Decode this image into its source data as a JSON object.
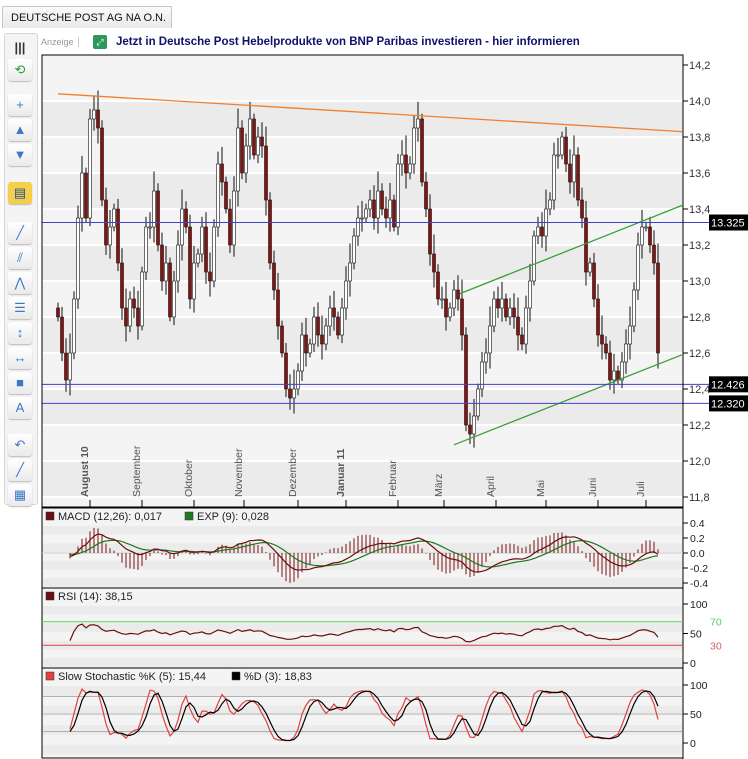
{
  "tab": {
    "title": "DEUTSCHE POST AG NA O.N."
  },
  "banner": {
    "ad_label": "Anzeige",
    "text": "Jetzt in Deutsche Post Hebelprodukte von BNP Paribas investieren - hier informieren"
  },
  "toolbar": {
    "items": [
      {
        "name": "collapse-toolbar",
        "glyph": "|||"
      },
      {
        "name": "refresh",
        "glyph": "⟲"
      },
      {
        "name": "crosshair",
        "glyph": "+"
      },
      {
        "name": "zoom-in",
        "glyph": "▲"
      },
      {
        "name": "zoom-out",
        "glyph": "▼"
      },
      {
        "name": "indicators",
        "glyph": "▤"
      },
      {
        "name": "trendline",
        "glyph": "╱"
      },
      {
        "name": "channel",
        "glyph": "⫽"
      },
      {
        "name": "fibonacci",
        "glyph": "⋀"
      },
      {
        "name": "fib-levels",
        "glyph": "☰"
      },
      {
        "name": "vertical-line",
        "glyph": "↕"
      },
      {
        "name": "horizontal-line",
        "glyph": "↔"
      },
      {
        "name": "rectangle",
        "glyph": "■"
      },
      {
        "name": "text",
        "glyph": "A"
      },
      {
        "name": "arc",
        "glyph": "↶"
      },
      {
        "name": "ray",
        "glyph": "╱"
      },
      {
        "name": "colors",
        "glyph": "▦"
      }
    ]
  },
  "chart_data": {
    "type": "candlestick",
    "title": "DEUTSCHE POST AG NA O.N.",
    "ylim": [
      11.8,
      14.2
    ],
    "y_ticks": [
      "14,2",
      "14,0",
      "13,8",
      "13,6",
      "13,4",
      "13,2",
      "13,0",
      "12,8",
      "12,6",
      "12,4",
      "12,2",
      "12,0",
      "11,8"
    ],
    "months": [
      {
        "label": "August 10",
        "index": 8,
        "bold": true
      },
      {
        "label": "September",
        "index": 21,
        "bold": false
      },
      {
        "label": "Oktober",
        "index": 34,
        "bold": false
      },
      {
        "label": "November",
        "index": 46.5,
        "bold": false
      },
      {
        "label": "Dezember",
        "index": 60,
        "bold": false
      },
      {
        "label": "Januar 11",
        "index": 72,
        "bold": true
      },
      {
        "label": "Februar",
        "index": 85,
        "bold": false
      },
      {
        "label": "März",
        "index": 96.5,
        "bold": false
      },
      {
        "label": "April",
        "index": 109.5,
        "bold": false
      },
      {
        "label": "Mai",
        "index": 122,
        "bold": false
      },
      {
        "label": "Juni",
        "index": 135,
        "bold": false
      },
      {
        "label": "Juli",
        "index": 147,
        "bold": false
      }
    ],
    "close": [
      12.8,
      12.6,
      12.45,
      12.6,
      12.9,
      13.35,
      13.6,
      13.35,
      13.9,
      13.95,
      13.85,
      13.45,
      13.2,
      13.3,
      13.4,
      13.1,
      12.85,
      12.75,
      12.9,
      12.85,
      12.75,
      13.05,
      13.3,
      13.3,
      13.5,
      13.2,
      13.0,
      13.1,
      12.8,
      13.0,
      13.2,
      13.4,
      13.3,
      12.9,
      13.1,
      13.15,
      13.3,
      13.05,
      13.0,
      13.3,
      13.65,
      13.55,
      13.4,
      13.2,
      13.5,
      13.85,
      13.6,
      13.75,
      13.9,
      13.7,
      13.8,
      13.75,
      13.45,
      13.1,
      12.95,
      12.75,
      12.6,
      12.4,
      12.35,
      12.4,
      12.5,
      12.7,
      12.6,
      12.65,
      12.8,
      12.7,
      12.65,
      12.75,
      12.85,
      12.8,
      12.7,
      12.85,
      13.0,
      13.1,
      13.25,
      13.35,
      13.35,
      13.4,
      13.45,
      13.35,
      13.5,
      13.4,
      13.35,
      13.45,
      13.3,
      13.65,
      13.7,
      13.6,
      13.65,
      13.85,
      13.9,
      13.55,
      13.4,
      13.15,
      13.05,
      12.9,
      12.9,
      12.8,
      12.85,
      12.95,
      12.9,
      12.7,
      12.2,
      12.15,
      12.25,
      12.4,
      12.55,
      12.6,
      12.75,
      12.9,
      12.85,
      12.9,
      12.8,
      12.85,
      12.8,
      12.7,
      12.65,
      12.85,
      13.0,
      13.25,
      13.3,
      13.25,
      13.4,
      13.45,
      13.7,
      13.7,
      13.8,
      13.65,
      13.55,
      13.7,
      13.45,
      13.35,
      13.05,
      13.1,
      12.9,
      12.7,
      12.65,
      12.6,
      12.45,
      12.5,
      12.45,
      12.55,
      12.65,
      12.75,
      12.95,
      13.2,
      13.3,
      13.3,
      13.2,
      13.1,
      12.6
    ],
    "horizontal_lines": [
      {
        "price": 13.325,
        "label": "13.325",
        "color": "#4040d0"
      },
      {
        "price": 12.426,
        "label": "12.426",
        "color": "#4040d0"
      },
      {
        "price": 12.32,
        "label": "12.320",
        "color": "#4040d0"
      }
    ],
    "trendlines": [
      {
        "name": "resistance-trendline",
        "from": [
          0,
          14.04
        ],
        "to": [
          156,
          13.83
        ],
        "color": "#f08030"
      },
      {
        "name": "channel-upper",
        "from": [
          100.5,
          12.93
        ],
        "to": [
          156,
          13.42
        ],
        "color": "#3aa03a"
      },
      {
        "name": "channel-lower",
        "from": [
          99,
          12.09
        ],
        "to": [
          156,
          12.59
        ],
        "color": "#3aa03a"
      }
    ],
    "indicators": {
      "macd": {
        "label": "MACD (12,26): 0,017",
        "signal_label": "EXP (9): 0,028",
        "macd_color": "#6a0f0f",
        "signal_color": "#1e7a1e",
        "ylim": [
          -0.45,
          0.45
        ],
        "ticks": [
          "0.4",
          "0.2",
          "0.0",
          "-0.2",
          "-0.4"
        ]
      },
      "rsi": {
        "label": "RSI (14): 38,15",
        "color": "#6a0f0f",
        "ylim": [
          0,
          100
        ],
        "ticks": [
          "100",
          "50",
          "0"
        ],
        "upper": 70,
        "lower": 30,
        "upper_label": "70",
        "lower_label": "30"
      },
      "stoch": {
        "k_label": "Slow Stochastic %K (5): 15,44",
        "d_label": "%D (3): 18,83",
        "k_color": "#e04040",
        "d_color": "#000000",
        "ylim": [
          0,
          100
        ],
        "ticks": [
          "100",
          "50",
          "0"
        ]
      }
    }
  }
}
